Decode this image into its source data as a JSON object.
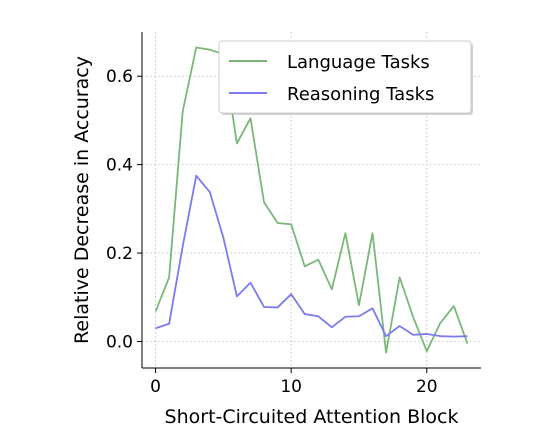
{
  "chart_data": {
    "type": "line",
    "xlabel": "Short-Circuited Attention Block",
    "ylabel": "Relative Decrease in Accuracy",
    "xlim": [
      -1,
      24
    ],
    "ylim": [
      -0.06,
      0.7
    ],
    "xticks": [
      0,
      10,
      20
    ],
    "xtick_labels": [
      "0",
      "10",
      "20"
    ],
    "yticks": [
      0.0,
      0.2,
      0.4,
      0.6
    ],
    "ytick_labels": [
      "0.0",
      "0.2",
      "0.4",
      "0.6"
    ],
    "grid": true,
    "legend_position": "top-right",
    "x": [
      0,
      1,
      2,
      3,
      4,
      5,
      6,
      7,
      8,
      9,
      10,
      11,
      12,
      13,
      14,
      15,
      16,
      17,
      18,
      19,
      20,
      21,
      22,
      23
    ],
    "series": [
      {
        "name": "Language Tasks",
        "color": "#7ab87a",
        "values": [
          0.068,
          0.145,
          0.52,
          0.665,
          0.66,
          0.65,
          0.448,
          0.505,
          0.315,
          0.268,
          0.265,
          0.17,
          0.185,
          0.118,
          0.245,
          0.082,
          0.245,
          -0.025,
          0.145,
          0.055,
          -0.022,
          0.042,
          0.08,
          -0.005
        ]
      },
      {
        "name": "Reasoning Tasks",
        "color": "#7b7bef",
        "values": [
          0.03,
          0.04,
          0.215,
          0.375,
          0.338,
          0.235,
          0.102,
          0.133,
          0.078,
          0.077,
          0.107,
          0.062,
          0.057,
          0.032,
          0.056,
          0.057,
          0.075,
          0.012,
          0.035,
          0.015,
          0.017,
          0.012,
          0.011,
          0.012
        ]
      }
    ]
  }
}
